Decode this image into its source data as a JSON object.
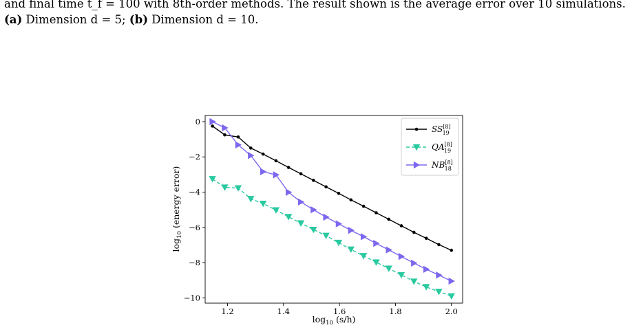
{
  "caption": {
    "line1": "and final time t_f = 100 with 8th-order methods. The result shown is the average error over 10 simulations.",
    "line2_a_label": "(a)",
    "line2_a_text": " Dimension d = 5; ",
    "line2_b_label": "(b)",
    "line2_b_text": " Dimension d = 10."
  },
  "chart_data": {
    "type": "line",
    "xlabel": "log10 (s/h)",
    "ylabel": "log10 (energy error)",
    "xlim": [
      1.12,
      2.04
    ],
    "ylim": [
      -10.3,
      0.35
    ],
    "xticks": [
      1.2,
      1.4,
      1.6,
      1.8,
      2.0
    ],
    "xtick_labels": [
      "1.2",
      "1.4",
      "1.6",
      "1.8",
      "2.0"
    ],
    "yticks": [
      0,
      -2,
      -4,
      -6,
      -8,
      -10
    ],
    "ytick_labels": [
      "0",
      "−2",
      "−4",
      "−6",
      "−8",
      "−10"
    ],
    "grid": false,
    "legend_position": "top-right",
    "series": [
      {
        "name": "SS_19^[8]",
        "name_base": "SS",
        "name_sup": "[8]",
        "name_sub": "19",
        "color": "#000000",
        "dash": "solid",
        "marker": "dot",
        "x": [
          1.146,
          1.19,
          1.238,
          1.283,
          1.327,
          1.373,
          1.418,
          1.462,
          1.507,
          1.552,
          1.597,
          1.641,
          1.686,
          1.731,
          1.776,
          1.821,
          1.866,
          1.91,
          1.955,
          2.0
        ],
        "y": [
          -0.25,
          -0.75,
          -0.87,
          -1.5,
          -1.84,
          -2.22,
          -2.6,
          -2.96,
          -3.33,
          -3.7,
          -4.07,
          -4.44,
          -4.8,
          -5.17,
          -5.54,
          -5.91,
          -6.28,
          -6.62,
          -6.98,
          -7.3
        ]
      },
      {
        "name": "QA_19^[8]",
        "name_base": "QA",
        "name_sup": "[8]",
        "name_sub": "19",
        "color": "#2ac9a0",
        "dash": "dashed",
        "marker": "triangle-down",
        "x": [
          1.146,
          1.19,
          1.238,
          1.283,
          1.327,
          1.373,
          1.418,
          1.462,
          1.507,
          1.552,
          1.597,
          1.641,
          1.686,
          1.731,
          1.776,
          1.821,
          1.866,
          1.91,
          1.955,
          2.0
        ],
        "y": [
          -3.25,
          -3.73,
          -3.77,
          -4.38,
          -4.65,
          -5.02,
          -5.4,
          -5.76,
          -6.13,
          -6.47,
          -6.87,
          -7.25,
          -7.62,
          -7.98,
          -8.33,
          -8.7,
          -9.07,
          -9.38,
          -9.65,
          -9.9
        ]
      },
      {
        "name": "NB_18^[8]",
        "name_base": "NB",
        "name_sup": "[8]",
        "name_sub": "18",
        "color": "#7b68ee",
        "dash": "solid",
        "marker": "triangle-right",
        "x": [
          1.146,
          1.19,
          1.238,
          1.283,
          1.327,
          1.373,
          1.418,
          1.462,
          1.507,
          1.552,
          1.597,
          1.641,
          1.686,
          1.731,
          1.776,
          1.821,
          1.866,
          1.91,
          1.955,
          2.0
        ],
        "y": [
          0.0,
          -0.35,
          -1.32,
          -1.92,
          -2.84,
          -3.02,
          -4.01,
          -4.56,
          -5.0,
          -5.42,
          -5.8,
          -6.17,
          -6.53,
          -6.91,
          -7.28,
          -7.65,
          -8.03,
          -8.38,
          -8.71,
          -9.05
        ]
      }
    ]
  }
}
